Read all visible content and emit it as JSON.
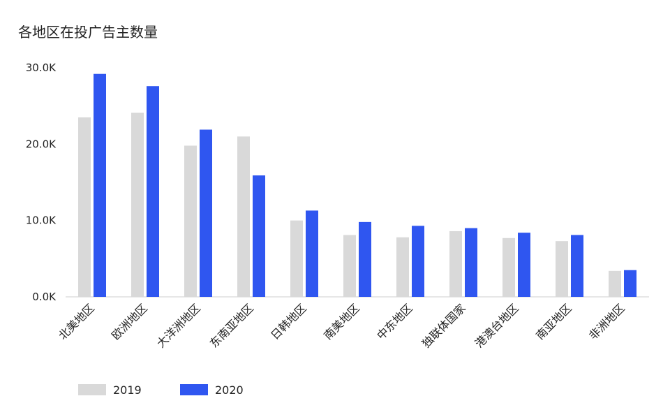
{
  "chart_data": {
    "type": "bar",
    "title": "各地区在投广告主数量",
    "categories": [
      "北美地区",
      "欧洲地区",
      "大洋洲地区",
      "东南亚地区",
      "日韩地区",
      "南美地区",
      "中东地区",
      "独联体国家",
      "港澳台地区",
      "南亚地区",
      "非洲地区"
    ],
    "series": [
      {
        "name": "2019",
        "color": "#d9d9d9",
        "values": [
          23500,
          24100,
          19800,
          21000,
          10000,
          8100,
          7800,
          8600,
          7700,
          7300,
          3400
        ]
      },
      {
        "name": "2020",
        "color": "#2f56f0",
        "values": [
          29200,
          27600,
          21900,
          15900,
          11300,
          9800,
          9300,
          9000,
          8400,
          8100,
          3500
        ]
      }
    ],
    "ylim": [
      0,
      30000
    ],
    "yticks": [
      0,
      10000,
      20000,
      30000
    ],
    "ytick_labels": [
      "0.0K",
      "10.0K",
      "20.0K",
      "30.0K"
    ],
    "xlabel": "",
    "ylabel": "",
    "grid": false,
    "legend": "bottom-left"
  }
}
